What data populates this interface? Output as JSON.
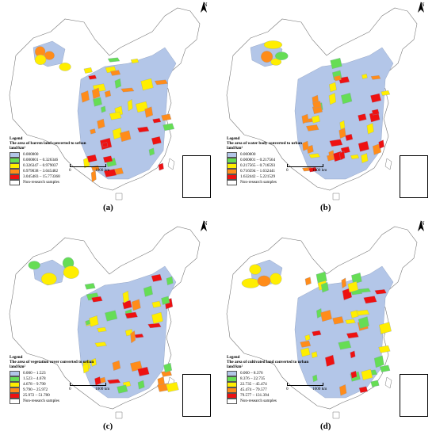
{
  "north_label": "N",
  "scale_zero": "0",
  "scale_label": "1000 km",
  "legend_heading": "Legend",
  "panels": [
    {
      "caption": "(a)",
      "legend_title": "The area of barren land converted to urban land/km²",
      "classes": [
        {
          "label": "0.000000",
          "color": "#b3c6e8"
        },
        {
          "label": "0.000001 – 0.326346",
          "color": "#66dd55"
        },
        {
          "label": "0.326347 – 0.979037",
          "color": "#ffee00"
        },
        {
          "label": "0.979038 – 3.045482",
          "color": "#ff8c1a"
        },
        {
          "label": "3.045483 – 15.773368",
          "color": "#ee1111"
        }
      ],
      "non_research": "Non-research samples"
    },
    {
      "caption": "(b)",
      "legend_title": "The area of water body converted to urban land/km²",
      "classes": [
        {
          "label": "0.000000",
          "color": "#b3c6e8"
        },
        {
          "label": "0.000001 – 0.217564",
          "color": "#66dd55"
        },
        {
          "label": "0.217565 – 0.716593",
          "color": "#ffee00"
        },
        {
          "label": "0.716594 – 1.632441",
          "color": "#ff8c1a"
        },
        {
          "label": "1.632442 – 5.221529",
          "color": "#ee1111"
        }
      ],
      "non_research": "Non-research samples"
    },
    {
      "caption": "(c)",
      "legend_title": "The area of vegetation cover converted to urban land/km²",
      "classes": [
        {
          "label": "0.000 – 1.523",
          "color": "#b3c6e8"
        },
        {
          "label": "1.523 – 4.678",
          "color": "#66dd55"
        },
        {
          "label": "4.678 – 9.790",
          "color": "#ffee00"
        },
        {
          "label": "9.790 – 25.972",
          "color": "#ff8c1a"
        },
        {
          "label": "25.972 – 51.780",
          "color": "#ee1111"
        }
      ],
      "non_research": "Non-research samples"
    },
    {
      "caption": "(d)",
      "legend_title": "The area of cultivated land converted to urban land/km²",
      "classes": [
        {
          "label": "0.000 – 8.376",
          "color": "#b3c6e8"
        },
        {
          "label": "8.376 – 22.735",
          "color": "#66dd55"
        },
        {
          "label": "22.735 – 45.474",
          "color": "#ffee00"
        },
        {
          "label": "45.474 – 79.577",
          "color": "#ff8c1a"
        },
        {
          "label": "79.577 – 131.394",
          "color": "#ee1111"
        }
      ],
      "non_research": "Non-research samples"
    }
  ]
}
